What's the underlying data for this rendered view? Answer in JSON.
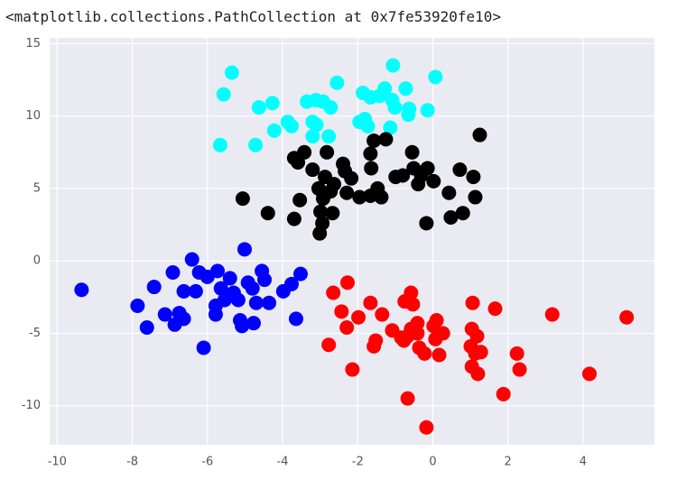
{
  "output_text": "<matplotlib.collections.PathCollection at 0x7fe53920fe10>",
  "chart_data": {
    "type": "scatter",
    "grid": true,
    "xlim": [
      -10.2,
      5.9
    ],
    "ylim": [
      -12.7,
      15.4
    ],
    "xticks": [
      -10,
      -8,
      -6,
      -4,
      -2,
      0,
      2,
      4
    ],
    "yticks": [
      -10,
      -5,
      0,
      5,
      10,
      15
    ],
    "series": [
      {
        "color": "#00ffff",
        "x": [
          -5.35,
          -5.57,
          -5.66,
          -4.72,
          -4.63,
          -4.27,
          -4.22,
          -3.86,
          -3.76,
          -3.35,
          -3.11,
          -2.92,
          -3.2,
          -3.1,
          -3.2,
          -2.77,
          -2.72,
          -2.55,
          -1.86,
          -1.66,
          -1.81,
          -1.95,
          -1.73,
          -1.28,
          -1.06,
          -1.08,
          -1.01,
          -1.13,
          -0.72,
          -0.63,
          -0.65,
          -0.14,
          0.07,
          -1.42
        ],
        "y": [
          13.0,
          11.5,
          8.0,
          8.0,
          10.6,
          10.9,
          9.0,
          9.6,
          9.3,
          11.0,
          11.1,
          11.0,
          9.6,
          9.4,
          8.6,
          8.6,
          10.6,
          12.3,
          11.6,
          11.3,
          9.8,
          9.6,
          9.3,
          11.9,
          13.5,
          11.1,
          10.6,
          9.2,
          11.9,
          10.5,
          10.1,
          10.4,
          12.7,
          11.4
        ]
      },
      {
        "color": "#000000",
        "x": [
          1.25,
          1.13,
          1.08,
          0.72,
          0.43,
          0.48,
          0.8,
          -0.17,
          0.02,
          -0.14,
          -0.51,
          -0.55,
          -0.8,
          -0.39,
          -0.31,
          -1.25,
          -1.57,
          -1.66,
          -1.64,
          -1.47,
          -1.37,
          -1.66,
          -1.95,
          -2.29,
          -2.17,
          -2.39,
          -2.34,
          -2.63,
          -2.87,
          -2.72,
          -3.04,
          -3.2,
          -3.42,
          -3.59,
          -3.69,
          -2.82,
          -2.99,
          -3.01,
          -2.94,
          -2.67,
          -3.54,
          -3.69,
          -4.39,
          -5.06,
          -0.99,
          -2.92
        ],
        "y": [
          8.7,
          4.4,
          5.8,
          6.3,
          4.7,
          3.0,
          3.3,
          2.6,
          5.5,
          6.4,
          6.4,
          7.5,
          5.9,
          5.3,
          5.9,
          8.4,
          8.3,
          7.4,
          6.4,
          5.0,
          4.4,
          4.5,
          4.4,
          4.7,
          5.7,
          6.7,
          6.2,
          5.3,
          5.8,
          4.8,
          5.0,
          6.3,
          7.5,
          6.8,
          7.1,
          7.5,
          3.4,
          1.9,
          2.6,
          3.3,
          4.2,
          2.9,
          3.3,
          4.3,
          5.8,
          4.3
        ]
      },
      {
        "color": "#0000ff",
        "x": [
          -9.35,
          -7.86,
          -7.61,
          -7.42,
          -7.13,
          -6.92,
          -6.87,
          -6.75,
          -6.63,
          -6.63,
          -6.41,
          -6.31,
          -6.22,
          -6.1,
          -6.0,
          -5.78,
          -5.78,
          -5.73,
          -5.64,
          -5.54,
          -5.4,
          -5.3,
          -5.13,
          -5.08,
          -5.01,
          -4.92,
          -4.8,
          -4.7,
          -4.77,
          -5.18,
          -4.55,
          -4.48,
          -4.36,
          -3.98,
          -3.76,
          -3.64,
          -3.52
        ],
        "y": [
          -2.0,
          -3.1,
          -4.6,
          -1.8,
          -3.7,
          -0.8,
          -4.4,
          -3.6,
          -4.0,
          -2.1,
          0.1,
          -2.1,
          -0.8,
          -6.0,
          -1.1,
          -3.7,
          -3.1,
          -0.7,
          -1.9,
          -2.7,
          -1.2,
          -2.2,
          -4.1,
          -4.5,
          0.8,
          -1.5,
          -1.9,
          -2.9,
          -4.3,
          -2.7,
          -0.7,
          -1.3,
          -2.9,
          -2.1,
          -1.6,
          -4.0,
          -0.9
        ]
      },
      {
        "color": "#ff0000",
        "x": [
          -2.77,
          -2.65,
          -2.43,
          -2.27,
          -2.29,
          -2.14,
          -1.98,
          -1.66,
          -1.52,
          -1.57,
          -1.35,
          -1.08,
          -0.77,
          -0.75,
          -0.67,
          -0.58,
          -0.53,
          -0.58,
          -0.41,
          -0.36,
          -0.22,
          -0.17,
          0.02,
          0.1,
          0.07,
          0.17,
          0.27,
          -0.67,
          -0.84,
          1.06,
          1.04,
          1.18,
          1.01,
          1.13,
          1.28,
          1.2,
          1.04,
          1.66,
          1.88,
          2.24,
          2.31,
          3.18,
          4.17,
          5.16,
          -0.41
        ],
        "y": [
          -5.8,
          -2.2,
          -3.5,
          -1.5,
          -4.6,
          -7.5,
          -3.9,
          -2.9,
          -5.5,
          -5.9,
          -3.7,
          -4.8,
          -5.5,
          -2.8,
          -9.5,
          -2.2,
          -3.0,
          -4.7,
          -4.3,
          -6.0,
          -6.4,
          -11.5,
          -4.5,
          -4.1,
          -5.4,
          -6.5,
          -5.0,
          -5.2,
          -5.3,
          -2.9,
          -4.7,
          -5.2,
          -5.9,
          -6.4,
          -6.3,
          -7.8,
          -7.3,
          -3.3,
          -9.2,
          -6.4,
          -7.5,
          -3.7,
          -7.8,
          -3.9,
          -5.0
        ]
      }
    ]
  }
}
